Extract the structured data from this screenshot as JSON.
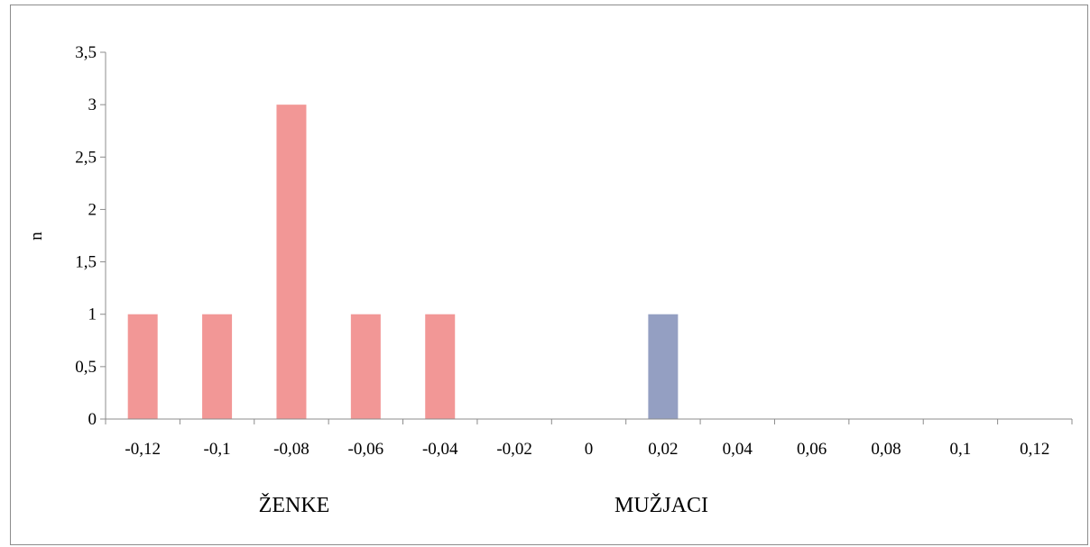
{
  "chart_data": {
    "type": "bar",
    "title": "",
    "xlabel": "",
    "ylabel": "n",
    "categories": [
      "-0,12",
      "-0,1",
      "-0,08",
      "-0,06",
      "-0,04",
      "-0,02",
      "0",
      "0,02",
      "0,04",
      "0,06",
      "0,08",
      "0,1",
      "0,12"
    ],
    "series": [
      {
        "values": [
          1,
          1,
          3,
          1,
          1,
          0,
          0,
          0,
          0,
          0,
          0,
          0,
          0
        ],
        "color": "#f29796"
      },
      {
        "values": [
          0,
          0,
          0,
          0,
          0,
          0,
          0,
          1,
          0,
          0,
          0,
          0,
          0
        ],
        "color": "#949fc2"
      }
    ],
    "ylim": [
      0,
      3.5
    ],
    "yticks": [
      "0",
      "0,5",
      "1",
      "1,5",
      "2",
      "2,5",
      "3",
      "3,5"
    ],
    "grid": false,
    "annotations": [
      "ŽENKE",
      "MUŽJACI"
    ]
  }
}
